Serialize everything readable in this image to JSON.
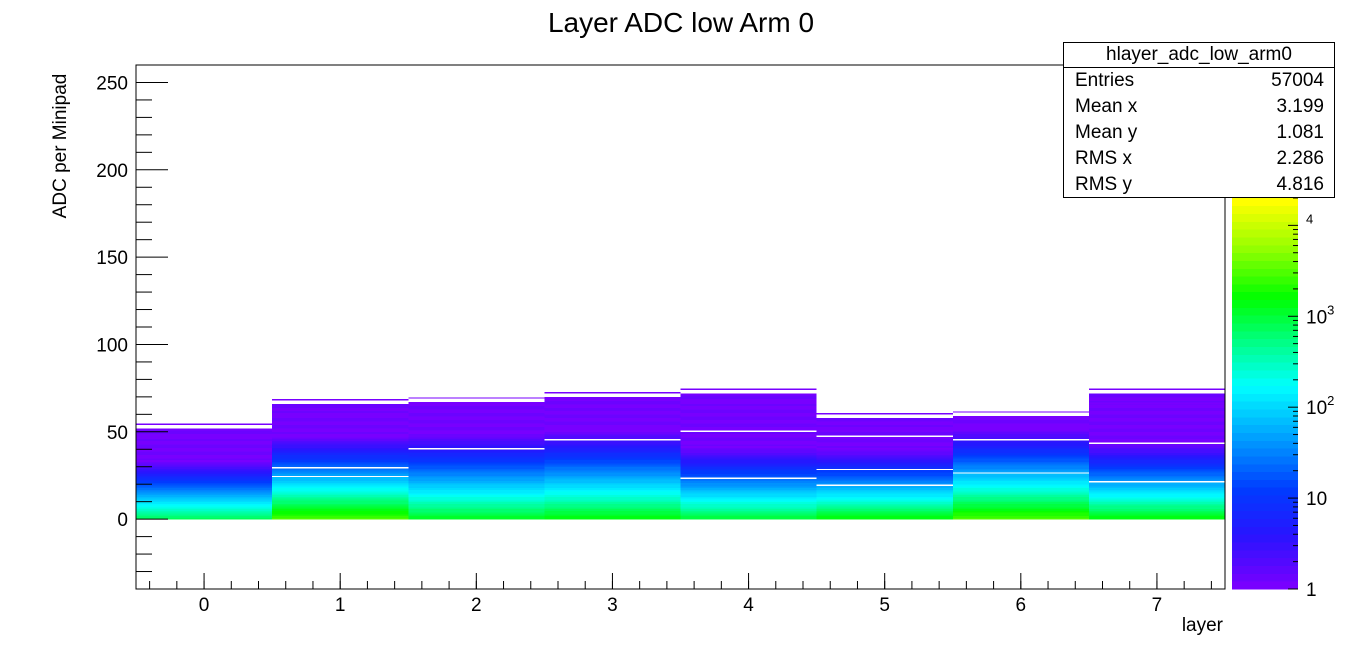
{
  "chart_data": {
    "type": "heatmap",
    "title": "Layer ADC low Arm 0",
    "xlabel": "layer",
    "ylabel": "ADC per Minipad",
    "xlim": [
      -0.5,
      7.5
    ],
    "ylim": [
      -40,
      260
    ],
    "x_ticks": [
      0,
      1,
      2,
      3,
      4,
      5,
      6,
      7
    ],
    "y_ticks": [
      0,
      50,
      100,
      150,
      200,
      250
    ],
    "z_scale": "log",
    "z_range": [
      1,
      20000
    ],
    "z_tick_labels": [
      {
        "value": 1,
        "label": "1"
      },
      {
        "value": 10,
        "label": "10"
      },
      {
        "value": 100,
        "label": "10",
        "exp": "2"
      },
      {
        "value": 1000,
        "label": "10",
        "exp": "3"
      },
      {
        "value": 10000,
        "label": "",
        "exp": "4"
      }
    ],
    "bins_x": [
      0,
      1,
      2,
      3,
      4,
      5,
      6,
      7
    ],
    "max_adc": [
      52,
      66,
      67,
      70,
      72,
      58,
      59,
      72
    ],
    "peak_counts": [
      800,
      3000,
      1200,
      1500,
      1000,
      1500,
      3000,
      1500
    ],
    "decay_lengths": [
      5,
      6,
      7,
      7,
      6,
      5.5,
      6.5,
      6
    ],
    "gaps": [
      [],
      [
        24,
        29
      ],
      [
        40
      ],
      [
        45
      ],
      [
        23,
        50
      ],
      [
        28,
        47,
        19
      ],
      [
        45,
        26
      ],
      [
        21,
        43
      ]
    ],
    "grid": false
  },
  "stats_box": {
    "title": "hlayer_adc_low_arm0",
    "rows": [
      {
        "label": "Entries",
        "value": "57004"
      },
      {
        "label": "Mean x",
        "value": "3.199"
      },
      {
        "label": "Mean y",
        "value": "1.081"
      },
      {
        "label": "RMS x",
        "value": "2.286"
      },
      {
        "label": "RMS y",
        "value": "4.816"
      }
    ]
  }
}
